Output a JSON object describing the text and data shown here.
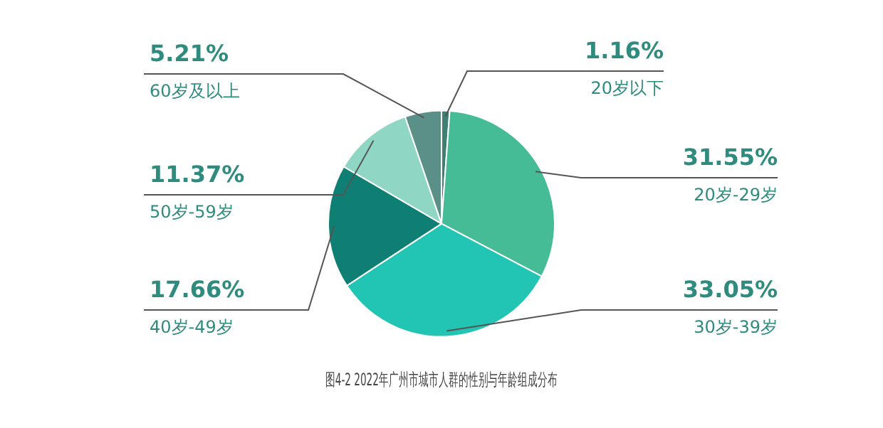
{
  "chart_data": {
    "type": "pie",
    "title": "图4-2 2022年广州市城市人群的性别与年龄组成分布",
    "categories": [
      "20岁以下",
      "20岁-29岁",
      "30岁-39岁",
      "40岁-49岁",
      "50岁-59岁",
      "60岁及以上"
    ],
    "values": [
      1.16,
      31.55,
      33.05,
      17.66,
      11.37,
      5.21
    ],
    "colors": [
      "#3f7f76",
      "#45bb96",
      "#22c4b4",
      "#0f7f74",
      "#8fd6c4",
      "#5b9088"
    ],
    "value_labels": [
      "1.16%",
      "31.55%",
      "33.05%",
      "17.66%",
      "11.37%",
      "5.21%"
    ],
    "legend": false
  }
}
